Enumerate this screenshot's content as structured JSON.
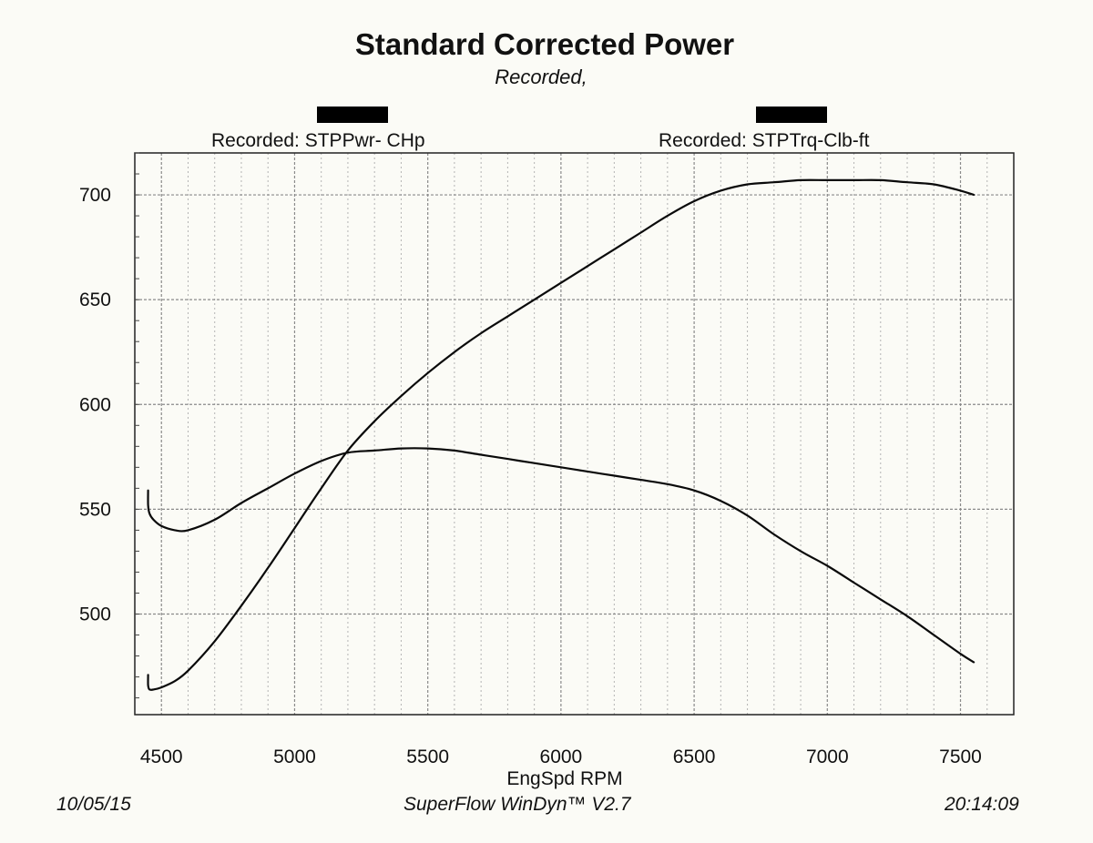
{
  "chart_data": {
    "type": "line",
    "title": "Standard Corrected Power",
    "subtitle": "Recorded,",
    "xlabel": "EngSpd  RPM",
    "ylabel": "",
    "xlim": [
      4400,
      7700
    ],
    "ylim": [
      452,
      720
    ],
    "x_ticks": [
      4500,
      5000,
      5500,
      6000,
      6500,
      7000,
      7500
    ],
    "y_ticks": [
      500,
      550,
      600,
      650,
      700
    ],
    "grid": true,
    "legend_position": "top",
    "series": [
      {
        "name": "Recorded: STPPwr- CHp",
        "x": [
          4450,
          4450,
          4455,
          4470,
          4500,
          4550,
          4600,
          4700,
          4800,
          4900,
          5000,
          5100,
          5200,
          5300,
          5400,
          5500,
          5600,
          5700,
          5800,
          5900,
          6000,
          6100,
          6200,
          6300,
          6400,
          6500,
          6600,
          6700,
          6800,
          6900,
          7000,
          7100,
          7200,
          7300,
          7400,
          7500,
          7550
        ],
        "values": [
          471,
          466,
          464,
          464,
          465,
          468,
          473,
          487,
          504,
          522,
          541,
          560,
          578,
          592,
          604,
          615,
          625,
          634,
          642,
          650,
          658,
          666,
          674,
          682,
          690,
          697,
          702,
          705,
          706,
          707,
          707,
          707,
          707,
          706,
          705,
          702,
          700
        ]
      },
      {
        "name": "Recorded: STPTrq-Clb-ft",
        "x": [
          4450,
          4450,
          4455,
          4470,
          4500,
          4550,
          4600,
          4700,
          4800,
          4900,
          5000,
          5100,
          5200,
          5300,
          5400,
          5500,
          5600,
          5700,
          5800,
          5900,
          6000,
          6100,
          6200,
          6300,
          6400,
          6500,
          6600,
          6700,
          6800,
          6900,
          7000,
          7100,
          7200,
          7300,
          7400,
          7500,
          7550
        ],
        "values": [
          559,
          552,
          548,
          545,
          542,
          540,
          540,
          545,
          553,
          560,
          567,
          573,
          577,
          578,
          579,
          579,
          578,
          576,
          574,
          572,
          570,
          568,
          566,
          564,
          562,
          559,
          554,
          547,
          538,
          530,
          523,
          515,
          507,
          499,
          490,
          481,
          477
        ]
      }
    ]
  },
  "footer": {
    "date": "10/05/15",
    "software": "SuperFlow WinDyn™  V2.7",
    "time": "20:14:09"
  }
}
